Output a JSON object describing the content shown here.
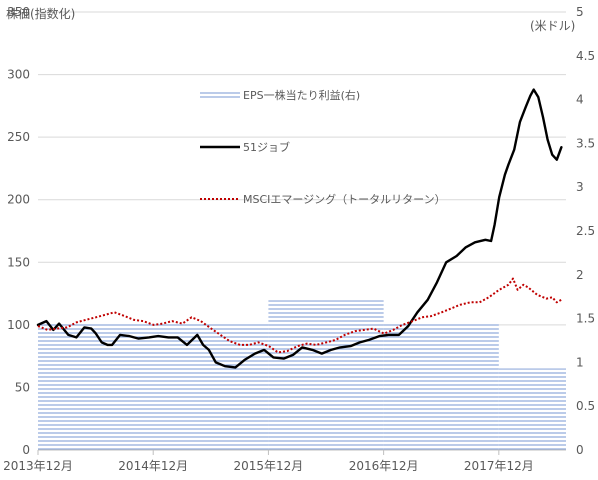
{
  "chart_data": {
    "type": "bar+line",
    "left_axis_title": "株価(指数化)",
    "right_axis_title": "(米ドル)",
    "left_axis": {
      "min": 0,
      "max": 350,
      "step": 50,
      "ticks": [
        "0",
        "50",
        "100",
        "150",
        "200",
        "250",
        "300",
        "350"
      ]
    },
    "right_axis": {
      "min": 0,
      "max": 5,
      "step": 0.5,
      "ticks": [
        "0",
        "0.5",
        "1",
        "1.5",
        "2",
        "2.5",
        "3",
        "3.5",
        "4",
        "4.5",
        "5"
      ]
    },
    "x_axis": {
      "start": 2013.917,
      "end": 2018.5,
      "ticks": [
        {
          "x": 2013.917,
          "label": "2013年12月"
        },
        {
          "x": 2014.917,
          "label": "2014年12月"
        },
        {
          "x": 2015.917,
          "label": "2015年12月"
        },
        {
          "x": 2016.917,
          "label": "2016年12月"
        },
        {
          "x": 2017.917,
          "label": "2017年12月"
        }
      ]
    },
    "grid": "horizontal",
    "legend_position": "center-left inside plot",
    "eps": {
      "name": "EPS一株当たり利益(右)",
      "color": "#8EA9DB",
      "style": "horizontal-hatch",
      "segments": [
        {
          "x0": 2013.917,
          "x1": 2015.917,
          "value": 1.45
        },
        {
          "x0": 2015.917,
          "x1": 2016.917,
          "value": 1.71
        },
        {
          "x0": 2016.917,
          "x1": 2017.917,
          "value": 1.46
        },
        {
          "x0": 2017.917,
          "x1": 2018.5,
          "value": 0.93
        }
      ]
    },
    "series": [
      {
        "name": "51ジョブ",
        "color": "#000000",
        "style": "solid",
        "points": [
          [
            2013.917,
            100
          ],
          [
            2013.99,
            103
          ],
          [
            2014.05,
            96
          ],
          [
            2014.1,
            101
          ],
          [
            2014.18,
            92
          ],
          [
            2014.25,
            90
          ],
          [
            2014.32,
            98
          ],
          [
            2014.38,
            97
          ],
          [
            2014.42,
            93
          ],
          [
            2014.47,
            86
          ],
          [
            2014.52,
            84
          ],
          [
            2014.56,
            84
          ],
          [
            2014.63,
            92
          ],
          [
            2014.71,
            91
          ],
          [
            2014.79,
            89
          ],
          [
            2014.88,
            90
          ],
          [
            2014.96,
            91
          ],
          [
            2015.05,
            90
          ],
          [
            2015.13,
            90
          ],
          [
            2015.21,
            84
          ],
          [
            2015.3,
            92
          ],
          [
            2015.35,
            84
          ],
          [
            2015.4,
            80
          ],
          [
            2015.46,
            70
          ],
          [
            2015.54,
            67
          ],
          [
            2015.63,
            66
          ],
          [
            2015.71,
            72
          ],
          [
            2015.8,
            77
          ],
          [
            2015.88,
            80
          ],
          [
            2015.96,
            74
          ],
          [
            2016.05,
            73
          ],
          [
            2016.13,
            76
          ],
          [
            2016.21,
            82
          ],
          [
            2016.3,
            80
          ],
          [
            2016.38,
            77
          ],
          [
            2016.46,
            80
          ],
          [
            2016.54,
            82
          ],
          [
            2016.63,
            83
          ],
          [
            2016.71,
            86
          ],
          [
            2016.79,
            88
          ],
          [
            2016.88,
            91
          ],
          [
            2016.96,
            92
          ],
          [
            2017.05,
            92
          ],
          [
            2017.13,
            99
          ],
          [
            2017.21,
            110
          ],
          [
            2017.3,
            120
          ],
          [
            2017.38,
            134
          ],
          [
            2017.46,
            150
          ],
          [
            2017.55,
            155
          ],
          [
            2017.63,
            162
          ],
          [
            2017.71,
            166
          ],
          [
            2017.8,
            168
          ],
          [
            2017.85,
            167
          ],
          [
            2017.88,
            180
          ],
          [
            2017.92,
            202
          ],
          [
            2017.97,
            220
          ],
          [
            2018.0,
            228
          ],
          [
            2018.05,
            240
          ],
          [
            2018.1,
            262
          ],
          [
            2018.15,
            274
          ],
          [
            2018.19,
            283
          ],
          [
            2018.22,
            288
          ],
          [
            2018.26,
            282
          ],
          [
            2018.3,
            266
          ],
          [
            2018.34,
            248
          ],
          [
            2018.38,
            236
          ],
          [
            2018.42,
            232
          ],
          [
            2018.46,
            242
          ]
        ]
      },
      {
        "name": "MSCIエマージング（トータルリターン）",
        "color": "#C00000",
        "style": "dotted",
        "points": [
          [
            2013.917,
            99
          ],
          [
            2014.0,
            96
          ],
          [
            2014.08,
            97
          ],
          [
            2014.17,
            98
          ],
          [
            2014.25,
            102
          ],
          [
            2014.33,
            104
          ],
          [
            2014.42,
            106
          ],
          [
            2014.5,
            108
          ],
          [
            2014.58,
            110
          ],
          [
            2014.67,
            107
          ],
          [
            2014.75,
            104
          ],
          [
            2014.83,
            103
          ],
          [
            2014.92,
            100
          ],
          [
            2015.0,
            101
          ],
          [
            2015.08,
            103
          ],
          [
            2015.17,
            101
          ],
          [
            2015.25,
            106
          ],
          [
            2015.33,
            103
          ],
          [
            2015.42,
            97
          ],
          [
            2015.5,
            92
          ],
          [
            2015.58,
            87
          ],
          [
            2015.67,
            84
          ],
          [
            2015.75,
            84
          ],
          [
            2015.83,
            86
          ],
          [
            2015.92,
            83
          ],
          [
            2016.0,
            78
          ],
          [
            2016.08,
            79
          ],
          [
            2016.17,
            83
          ],
          [
            2016.25,
            85
          ],
          [
            2016.33,
            84
          ],
          [
            2016.42,
            86
          ],
          [
            2016.5,
            88
          ],
          [
            2016.58,
            92
          ],
          [
            2016.67,
            95
          ],
          [
            2016.75,
            96
          ],
          [
            2016.83,
            97
          ],
          [
            2016.92,
            93
          ],
          [
            2017.0,
            96
          ],
          [
            2017.08,
            100
          ],
          [
            2017.17,
            103
          ],
          [
            2017.25,
            106
          ],
          [
            2017.33,
            107
          ],
          [
            2017.42,
            110
          ],
          [
            2017.5,
            113
          ],
          [
            2017.58,
            116
          ],
          [
            2017.67,
            118
          ],
          [
            2017.75,
            118
          ],
          [
            2017.83,
            122
          ],
          [
            2017.92,
            128
          ],
          [
            2018.0,
            132
          ],
          [
            2018.04,
            137
          ],
          [
            2018.08,
            128
          ],
          [
            2018.13,
            132
          ],
          [
            2018.17,
            130
          ],
          [
            2018.25,
            124
          ],
          [
            2018.33,
            121
          ],
          [
            2018.38,
            122
          ],
          [
            2018.42,
            118
          ],
          [
            2018.46,
            120
          ]
        ]
      }
    ]
  }
}
